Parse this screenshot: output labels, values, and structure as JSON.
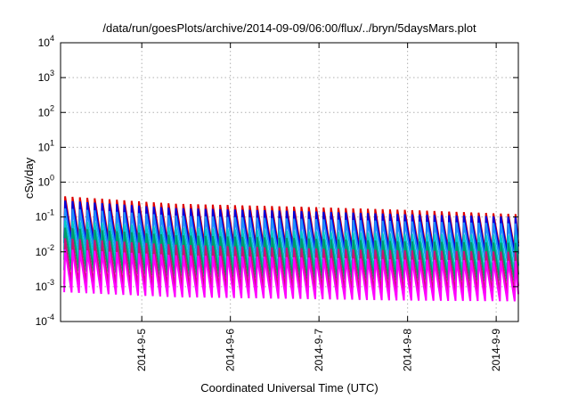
{
  "chart_data": {
    "type": "line",
    "title": "/data/run/goesPlots/archive/2014-09-09/06:00/flux/../bryn/5daysMars.plot",
    "xlabel": "Coordinated Universal Time (UTC)",
    "ylabel": "cSv/day",
    "y_scale": "log",
    "ylim": [
      0.0001,
      10000
    ],
    "y_ticks": [
      {
        "value": 0.0001,
        "base": "10",
        "exp": "-4"
      },
      {
        "value": 0.001,
        "base": "10",
        "exp": "-3"
      },
      {
        "value": 0.01,
        "base": "10",
        "exp": "-2"
      },
      {
        "value": 0.1,
        "base": "10",
        "exp": "-1"
      },
      {
        "value": 1,
        "base": "10",
        "exp": "0"
      },
      {
        "value": 10,
        "base": "10",
        "exp": "1"
      },
      {
        "value": 100,
        "base": "10",
        "exp": "2"
      },
      {
        "value": 1000,
        "base": "10",
        "exp": "3"
      },
      {
        "value": 10000,
        "base": "10",
        "exp": "4"
      }
    ],
    "xlim": [
      "2014-09-04T02:00",
      "2014-09-09T06:00"
    ],
    "x_ticks": [
      {
        "date": "2014-09-05T00:00",
        "label": "2014-9-5"
      },
      {
        "date": "2014-09-06T00:00",
        "label": "2014-9-6"
      },
      {
        "date": "2014-09-07T00:00",
        "label": "2014-9-7"
      },
      {
        "date": "2014-09-08T00:00",
        "label": "2014-9-8"
      },
      {
        "date": "2014-09-09T00:00",
        "label": "2014-9-9"
      }
    ],
    "x_tick_label_rotation": "vertical",
    "grid": true,
    "legend": "none",
    "pattern": "sawtooth: rapid rise then decay, period about 2 hours",
    "period_hours": 2,
    "series": [
      {
        "color": "#dd0000",
        "peak": [
          0.4,
          0.24,
          0.2,
          0.16,
          0.12
        ],
        "trough": [
          0.025,
          0.018,
          0.014,
          0.012,
          0.011
        ]
      },
      {
        "color": "#0000dd",
        "peak": [
          0.3,
          0.18,
          0.15,
          0.12,
          0.1
        ],
        "trough": [
          0.018,
          0.013,
          0.011,
          0.0095,
          0.009
        ]
      },
      {
        "color": "#1e90ff",
        "peak": [
          0.18,
          0.11,
          0.09,
          0.075,
          0.065
        ],
        "trough": [
          0.012,
          0.008,
          0.007,
          0.006,
          0.0055
        ]
      },
      {
        "color": "#00c8c8",
        "peak": [
          0.08,
          0.05,
          0.04,
          0.033,
          0.03
        ],
        "trough": [
          0.006,
          0.004,
          0.0033,
          0.0028,
          0.0025
        ]
      },
      {
        "color": "#009a6a",
        "peak": [
          0.05,
          0.03,
          0.025,
          0.02,
          0.018
        ],
        "trough": [
          0.003,
          0.002,
          0.0017,
          0.0015,
          0.0014
        ]
      },
      {
        "color": "#cc1177",
        "peak": [
          0.025,
          0.016,
          0.013,
          0.011,
          0.01
        ],
        "trough": [
          0.0012,
          0.0009,
          0.0008,
          0.0007,
          0.00065
        ]
      },
      {
        "color": "#ff00ff",
        "peak": [
          0.012,
          0.008,
          0.007,
          0.006,
          0.0055
        ],
        "trough": [
          0.0007,
          0.0005,
          0.00045,
          0.0004,
          0.00038
        ]
      }
    ]
  }
}
